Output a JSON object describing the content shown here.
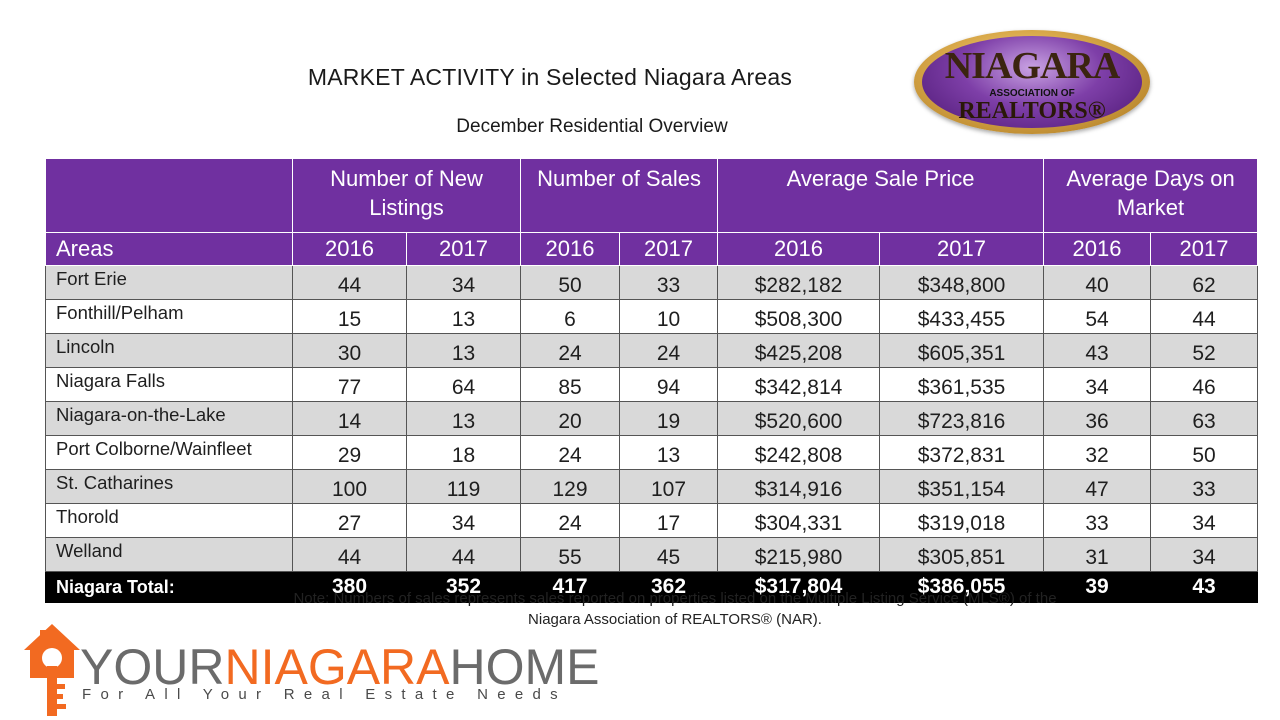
{
  "header": {
    "title": "MARKET ACTIVITY in Selected Niagara Areas",
    "subtitle": "December Residential Overview"
  },
  "nar_logo": {
    "word": "NIAGARA",
    "assoc": "ASSOCIATION OF",
    "realtors": "REALTORS®"
  },
  "table": {
    "group_headers": [
      "Number of New Listings",
      "Number of Sales",
      "Average Sale Price",
      "Average Days on Market"
    ],
    "areas_label": "Areas",
    "years": [
      "2016",
      "2017",
      "2016",
      "2017",
      "2016",
      "2017",
      "2016",
      "2017"
    ],
    "rows": [
      {
        "area": "Fort Erie",
        "values": [
          "44",
          "34",
          "50",
          "33",
          "$282,182",
          "$348,800",
          "40",
          "62"
        ]
      },
      {
        "area": "Fonthill/Pelham",
        "values": [
          "15",
          "13",
          "6",
          "10",
          "$508,300",
          "$433,455",
          "54",
          "44"
        ]
      },
      {
        "area": "Lincoln",
        "values": [
          "30",
          "13",
          "24",
          "24",
          "$425,208",
          "$605,351",
          "43",
          "52"
        ]
      },
      {
        "area": "Niagara Falls",
        "values": [
          "77",
          "64",
          "85",
          "94",
          "$342,814",
          "$361,535",
          "34",
          "46"
        ]
      },
      {
        "area": "Niagara-on-the-Lake",
        "values": [
          "14",
          "13",
          "20",
          "19",
          "$520,600",
          "$723,816",
          "36",
          "63"
        ]
      },
      {
        "area": "Port Colborne/Wainfleet",
        "values": [
          "29",
          "18",
          "24",
          "13",
          "$242,808",
          "$372,831",
          "32",
          "50"
        ]
      },
      {
        "area": "St. Catharines",
        "values": [
          "100",
          "119",
          "129",
          "107",
          "$314,916",
          "$351,154",
          "47",
          "33"
        ]
      },
      {
        "area": "Thorold",
        "values": [
          "27",
          "34",
          "24",
          "17",
          "$304,331",
          "$319,018",
          "33",
          "34"
        ]
      },
      {
        "area": "Welland",
        "values": [
          "44",
          "44",
          "55",
          "45",
          "$215,980",
          "$305,851",
          "31",
          "34"
        ]
      }
    ],
    "total": {
      "area": "Niagara Total:",
      "values": [
        "380",
        "352",
        "417",
        "362",
        "$317,804",
        "$386,055",
        "39",
        "43"
      ]
    }
  },
  "note": {
    "line1": "Note: Numbers of sales represents sales reported on properties listed on the Multiple Listing Service (MLS®) of the",
    "line2": "Niagara Association of REALTORS® (NAR)."
  },
  "brand": {
    "your": "YOUR",
    "niagara": "NIAGARA",
    "home": "HOME",
    "tagline": "For All Your Real Estate Needs",
    "colors": {
      "accent": "#f26a21",
      "gray": "#6b6b6b",
      "header_purple": "#7030a0"
    }
  }
}
